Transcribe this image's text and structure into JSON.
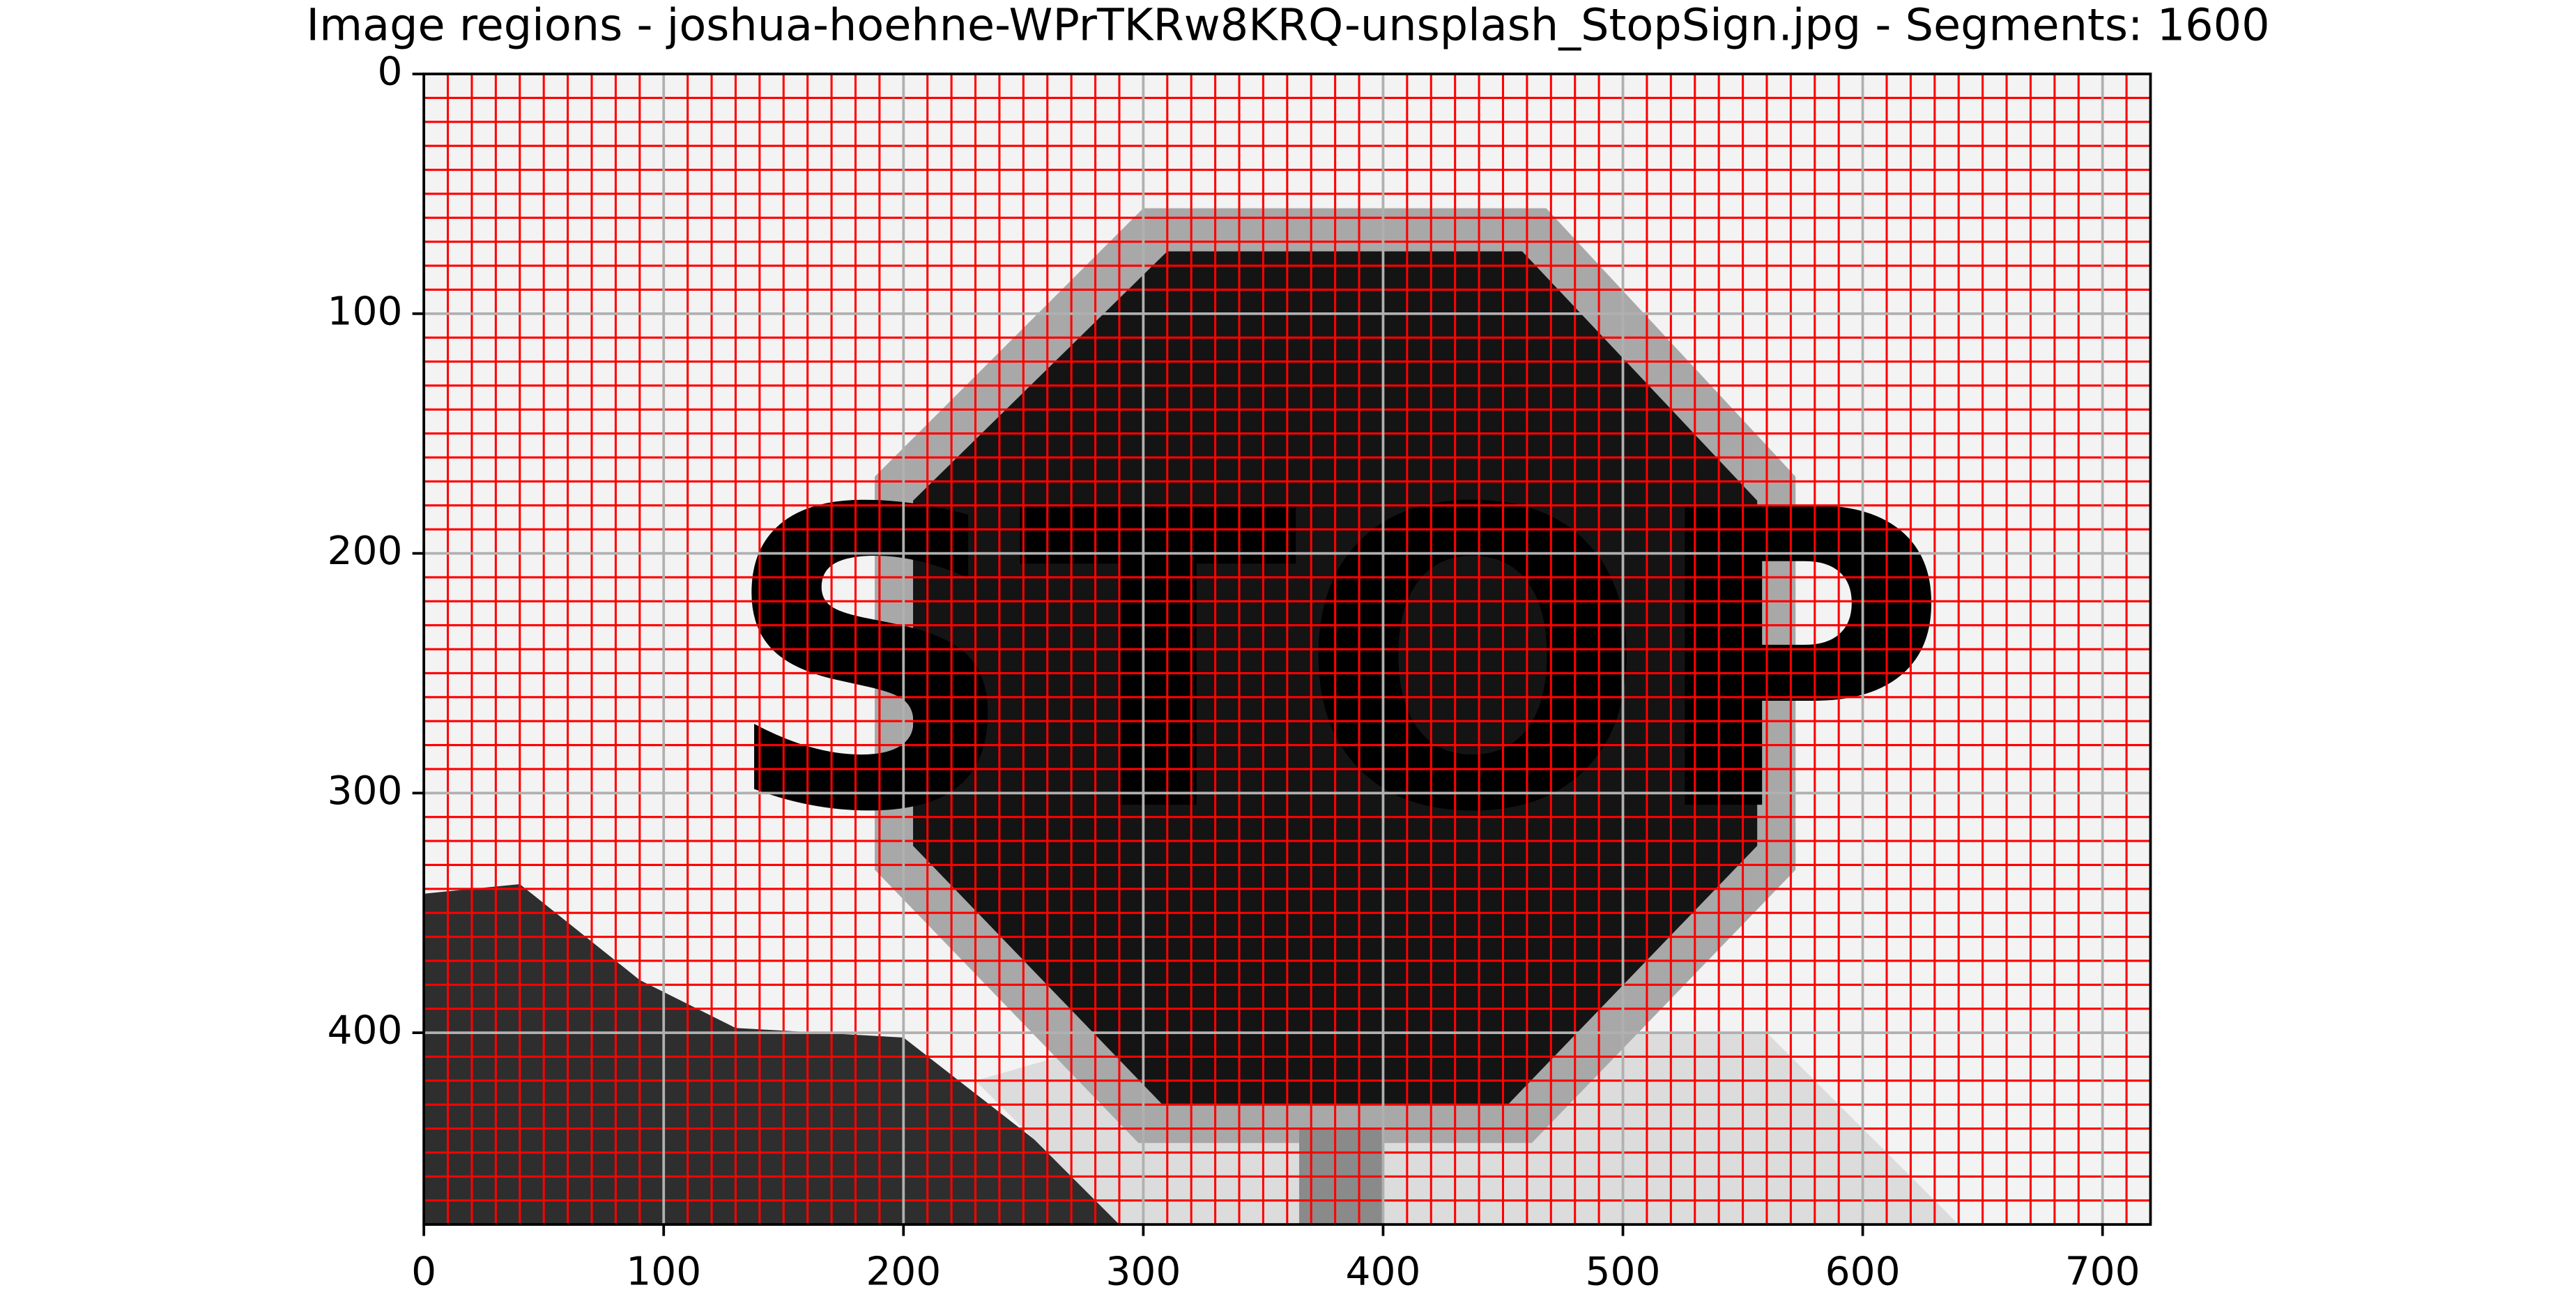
{
  "chart_data": {
    "type": "image",
    "title": "Image regions - joshua-hoehne-WPrTKRw8KRQ-unsplash_StopSign.jpg - Segments: 1600",
    "image_text": "STOP",
    "xlim": [
      0,
      720
    ],
    "ylim": [
      480,
      0
    ],
    "xticks": [
      0,
      100,
      200,
      300,
      400,
      500,
      600,
      700
    ],
    "yticks": [
      0,
      100,
      200,
      300,
      400
    ],
    "grid": true,
    "grid_color": "#b0b0b0",
    "boundary_color": "#ff0000"
  }
}
